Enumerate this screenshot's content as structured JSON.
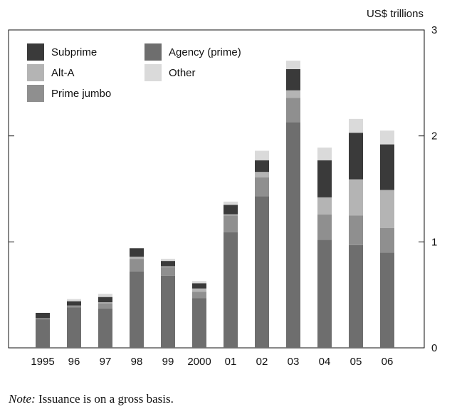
{
  "chart_data": {
    "type": "bar",
    "stacked": true,
    "title": "",
    "xlabel": "",
    "ylabel": "",
    "y_unit_label": "US$ trillions",
    "ylim": [
      0,
      3
    ],
    "yticks": [
      0,
      1,
      2,
      3
    ],
    "grid": false,
    "legend_position": "top-left",
    "categories": [
      "1995",
      "96",
      "97",
      "98",
      "99",
      "2000",
      "01",
      "02",
      "03",
      "04",
      "05",
      "06"
    ],
    "series": [
      {
        "name": "Agency (prime)",
        "color": "#6e6e6e",
        "values": [
          0.27,
          0.38,
          0.37,
          0.72,
          0.68,
          0.47,
          1.09,
          1.43,
          2.13,
          1.02,
          0.97,
          0.9
        ]
      },
      {
        "name": "Prime jumbo",
        "color": "#8f8f8f",
        "values": [
          0.01,
          0.02,
          0.05,
          0.12,
          0.08,
          0.06,
          0.16,
          0.18,
          0.23,
          0.24,
          0.28,
          0.23
        ]
      },
      {
        "name": "Alt-A",
        "color": "#b4b4b4",
        "values": [
          0.0,
          0.0,
          0.01,
          0.02,
          0.01,
          0.03,
          0.01,
          0.05,
          0.07,
          0.16,
          0.34,
          0.36
        ]
      },
      {
        "name": "Subprime",
        "color": "#3a3a3a",
        "values": [
          0.05,
          0.04,
          0.05,
          0.08,
          0.05,
          0.05,
          0.09,
          0.11,
          0.2,
          0.35,
          0.44,
          0.43
        ]
      },
      {
        "name": "Other",
        "color": "#dadada",
        "values": [
          0.0,
          0.02,
          0.03,
          0.0,
          0.02,
          0.02,
          0.03,
          0.09,
          0.08,
          0.12,
          0.13,
          0.13
        ]
      }
    ],
    "legend_order": [
      "Subprime",
      "Agency (prime)",
      "Alt-A",
      "Other",
      "Prime jumbo"
    ]
  },
  "note": {
    "label": "Note:",
    "text": " Issuance is on a gross basis."
  }
}
